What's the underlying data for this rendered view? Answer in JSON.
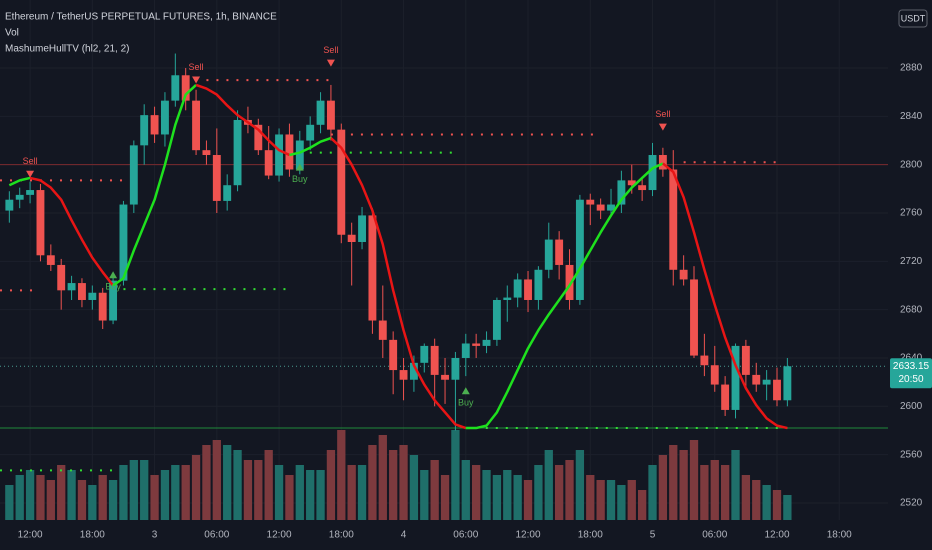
{
  "header": {
    "title": "Ethereum / TetherUS PERPETUAL FUTURES, 1h, BINANCE",
    "volume_label": "Vol",
    "indicator_label": "MashumeHullTV (hl2, 21, 2)",
    "currency": "USDT"
  },
  "chart_data": {
    "type": "candlestick",
    "open": [
      2762,
      2771,
      2775,
      2779,
      2725,
      2717,
      2696,
      2702,
      2688,
      2694,
      2671,
      2704,
      2767,
      2816,
      2841,
      2825,
      2853,
      2874,
      2853,
      2812,
      2808,
      2770,
      2783,
      2837,
      2833,
      2812,
      2791,
      2825,
      2796,
      2820,
      2833,
      2853,
      2829,
      2742,
      2736,
      2758,
      2671,
      2655,
      2630,
      2622,
      2636,
      2650,
      2626,
      2622,
      2640,
      2652,
      2650,
      2655,
      2688,
      2690,
      2705,
      2688,
      2713,
      2738,
      2717,
      2688,
      2771,
      2767,
      2762,
      2767,
      2787,
      2783,
      2779,
      2808,
      2796,
      2713,
      2705,
      2642,
      2634,
      2618,
      2597,
      2650,
      2626,
      2618,
      2622,
      2605
    ],
    "high": [
      2778,
      2781,
      2786,
      2784,
      2734,
      2722,
      2708,
      2706,
      2700,
      2698,
      2708,
      2770,
      2820,
      2850,
      2848,
      2860,
      2892,
      2880,
      2862,
      2820,
      2830,
      2792,
      2845,
      2848,
      2838,
      2832,
      2830,
      2834,
      2828,
      2840,
      2860,
      2866,
      2834,
      2752,
      2765,
      2764,
      2700,
      2662,
      2640,
      2642,
      2652,
      2656,
      2640,
      2645,
      2660,
      2660,
      2662,
      2690,
      2700,
      2710,
      2712,
      2716,
      2752,
      2745,
      2730,
      2775,
      2776,
      2772,
      2780,
      2795,
      2800,
      2790,
      2818,
      2814,
      2812,
      2725,
      2716,
      2660,
      2650,
      2625,
      2652,
      2655,
      2636,
      2630,
      2632,
      2640
    ],
    "low": [
      2752,
      2764,
      2768,
      2720,
      2712,
      2680,
      2688,
      2682,
      2680,
      2664,
      2668,
      2700,
      2760,
      2800,
      2818,
      2815,
      2848,
      2845,
      2808,
      2800,
      2760,
      2762,
      2778,
      2826,
      2808,
      2788,
      2786,
      2790,
      2792,
      2812,
      2826,
      2820,
      2735,
      2700,
      2730,
      2660,
      2640,
      2610,
      2605,
      2612,
      2628,
      2600,
      2602,
      2580,
      2625,
      2640,
      2644,
      2650,
      2670,
      2682,
      2678,
      2680,
      2706,
      2705,
      2680,
      2684,
      2750,
      2755,
      2758,
      2760,
      2776,
      2770,
      2774,
      2790,
      2700,
      2700,
      2640,
      2625,
      2612,
      2592,
      2590,
      2615,
      2612,
      2605,
      2600,
      2600
    ],
    "close": [
      2771,
      2775,
      2779,
      2725,
      2717,
      2696,
      2702,
      2688,
      2694,
      2671,
      2704,
      2767,
      2816,
      2841,
      2825,
      2853,
      2874,
      2853,
      2812,
      2808,
      2770,
      2783,
      2837,
      2833,
      2812,
      2791,
      2825,
      2796,
      2820,
      2833,
      2853,
      2829,
      2742,
      2736,
      2758,
      2671,
      2655,
      2630,
      2622,
      2636,
      2650,
      2626,
      2622,
      2640,
      2652,
      2650,
      2655,
      2688,
      2690,
      2705,
      2688,
      2713,
      2738,
      2717,
      2688,
      2771,
      2767,
      2762,
      2767,
      2787,
      2783,
      2779,
      2808,
      2796,
      2713,
      2705,
      2642,
      2634,
      2618,
      2597,
      2650,
      2626,
      2618,
      2622,
      2605,
      2633.15
    ],
    "up_color": "#26a69a",
    "down_color": "#ef5350",
    "ylim": [
      2505.9,
      2936.3
    ],
    "yticks": [
      2520,
      2560,
      2600,
      2640,
      2680,
      2720,
      2760,
      2800,
      2840,
      2880
    ],
    "xlim": [
      -0.9,
      84.7
    ],
    "xticks": [
      {
        "value": 2,
        "label": "12:00"
      },
      {
        "value": 8,
        "label": "18:00"
      },
      {
        "value": 14,
        "label": "3"
      },
      {
        "value": 20,
        "label": "06:00"
      },
      {
        "value": 26,
        "label": "12:00"
      },
      {
        "value": 32,
        "label": "18:00"
      },
      {
        "value": 38,
        "label": "4"
      },
      {
        "value": 44,
        "label": "06:00"
      },
      {
        "value": 50,
        "label": "12:00"
      },
      {
        "value": 56,
        "label": "18:00"
      },
      {
        "value": 62,
        "label": "5"
      },
      {
        "value": 68,
        "label": "06:00"
      },
      {
        "value": 74,
        "label": "12:00"
      },
      {
        "value": 80,
        "label": "18:00"
      }
    ],
    "grid": true,
    "volume": {
      "values": [
        35,
        45,
        50,
        45,
        40,
        55,
        50,
        40,
        35,
        45,
        40,
        55,
        60,
        60,
        45,
        50,
        55,
        55,
        65,
        75,
        80,
        75,
        70,
        60,
        60,
        70,
        55,
        45,
        55,
        50,
        50,
        70,
        90,
        55,
        55,
        75,
        85,
        70,
        75,
        65,
        50,
        60,
        45,
        90,
        60,
        55,
        50,
        45,
        50,
        45,
        40,
        55,
        70,
        55,
        60,
        70,
        45,
        40,
        40,
        35,
        40,
        30,
        55,
        65,
        75,
        70,
        80,
        55,
        60,
        55,
        70,
        45,
        40,
        35,
        30,
        25
      ],
      "ylim": [
        0,
        100
      ],
      "up_color": "#1f6f6a",
      "down_color": "#7d3a3e"
    },
    "hull": {
      "values": [
        2783,
        2787,
        2789,
        2787,
        2781,
        2771,
        2754,
        2738,
        2723,
        2711,
        2700,
        2706,
        2729,
        2750,
        2771,
        2800,
        2833,
        2858,
        2866,
        2863,
        2858,
        2849,
        2841,
        2835,
        2829,
        2820,
        2812,
        2808,
        2810,
        2814,
        2819,
        2822,
        2814,
        2800,
        2783,
        2762,
        2734,
        2696,
        2663,
        2634,
        2618,
        2605,
        2595,
        2585,
        2582,
        2582,
        2584,
        2595,
        2612,
        2630,
        2648,
        2663,
        2676,
        2688,
        2700,
        2714,
        2729,
        2744,
        2758,
        2771,
        2781,
        2789,
        2797,
        2801,
        2794,
        2773,
        2744,
        2713,
        2684,
        2657,
        2634,
        2615,
        2601,
        2590,
        2584,
        2582
      ],
      "up_color": "#1ee11e",
      "down_color": "#e81515"
    },
    "levels": [
      {
        "value": 2800,
        "from": -0.9,
        "to": 84.7,
        "color": "#7a2a2e",
        "style": "line"
      },
      {
        "value": 2582,
        "from": -0.9,
        "to": 84.7,
        "color": "#1f8a3a",
        "style": "line"
      },
      {
        "value": 2787,
        "from": -0.9,
        "to": 12,
        "color": "#ef5350",
        "style": "dots"
      },
      {
        "value": 2696,
        "from": -0.9,
        "to": 2.5,
        "color": "#ef5350",
        "style": "dots"
      },
      {
        "value": 2870,
        "from": 19,
        "to": 31,
        "color": "#ef5350",
        "style": "dots"
      },
      {
        "value": 2825,
        "from": 31,
        "to": 57,
        "color": "#ef5350",
        "style": "dots"
      },
      {
        "value": 2802,
        "from": 65,
        "to": 74,
        "color": "#ef5350",
        "style": "dots"
      },
      {
        "value": 2697,
        "from": 11,
        "to": 27,
        "color": "#33dd33",
        "style": "dots"
      },
      {
        "value": 2810,
        "from": 28,
        "to": 43,
        "color": "#33dd33",
        "style": "dots"
      },
      {
        "value": 2582,
        "from": 44,
        "to": 75,
        "color": "#33dd33",
        "style": "dots"
      },
      {
        "value": 2547,
        "from": -0.9,
        "to": 10,
        "color": "#33dd33",
        "style": "dots"
      }
    ],
    "signals": [
      {
        "label": "Sell",
        "index": 2,
        "value": 2790
      },
      {
        "label": "Sell",
        "index": 18,
        "value": 2868
      },
      {
        "label": "Sell",
        "index": 31,
        "value": 2882
      },
      {
        "label": "Sell",
        "index": 63,
        "value": 2829
      },
      {
        "label": "Buy",
        "index": 10,
        "value": 2711
      },
      {
        "label": "Buy",
        "index": 28,
        "value": 2800
      },
      {
        "label": "Buy",
        "index": 44,
        "value": 2615
      }
    ],
    "sell_color": "#ef5350",
    "buy_color": "#4caf50",
    "last_price_label": "2633.15",
    "countdown": "20:50"
  }
}
